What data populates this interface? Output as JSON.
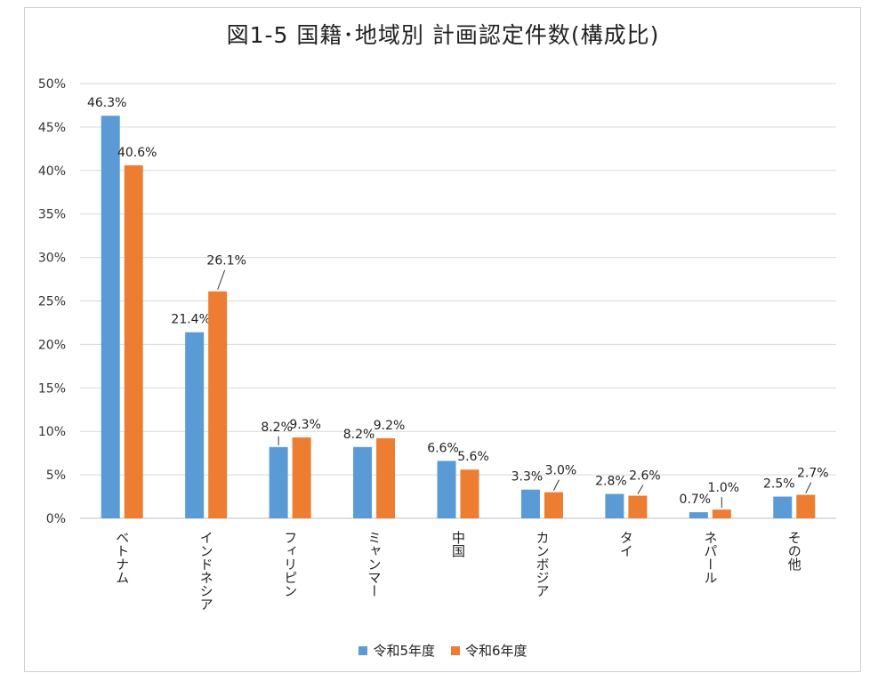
{
  "chart_data": {
    "type": "bar",
    "title": "図1-5  国籍･地域別  計画認定件数(構成比)",
    "categories": [
      "ベトナム",
      "インドネシア",
      "フィリピン",
      "ミャンマー",
      "中国",
      "カンボジア",
      "タイ",
      "ネパール",
      "その他"
    ],
    "series": [
      {
        "name": "令和5年度",
        "color": "#5b9bd5",
        "values": [
          46.3,
          21.4,
          8.2,
          8.2,
          6.6,
          3.3,
          2.8,
          0.7,
          2.5
        ],
        "labels": [
          "46.3%",
          "21.4%",
          "8.2%",
          "8.2%",
          "6.6%",
          "3.3%",
          "2.8%",
          "0.7%",
          "2.5%"
        ]
      },
      {
        "name": "令和6年度",
        "color": "#ed7d31",
        "values": [
          40.6,
          26.1,
          9.3,
          9.2,
          5.6,
          3.0,
          2.6,
          1.0,
          2.7
        ],
        "labels": [
          "40.6%",
          "26.1%",
          "9.3%",
          "9.2%",
          "5.6%",
          "3.0%",
          "2.6%",
          "1.0%",
          "2.7%"
        ]
      }
    ],
    "ylim": [
      0,
      50
    ],
    "yticks": [
      "0%",
      "5%",
      "10%",
      "15%",
      "20%",
      "25%",
      "30%",
      "35%",
      "40%",
      "45%",
      "50%"
    ],
    "xlabel": "",
    "ylabel": "",
    "grid": true,
    "legend": "bottom"
  }
}
